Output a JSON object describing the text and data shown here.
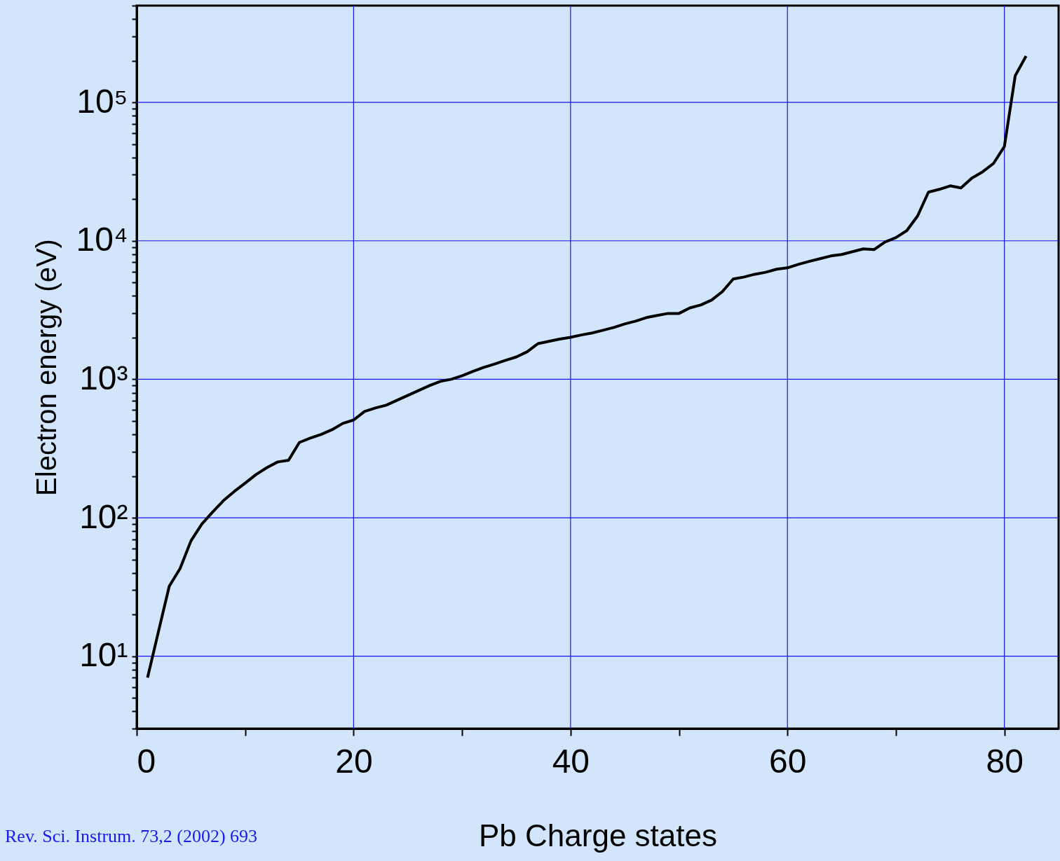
{
  "chart_data": {
    "type": "line",
    "xlabel": "Pb Charge states",
    "ylabel": "Electron energy (eV)",
    "annotations": [
      "Rev. Sci. Instrum. 73,2 (2002) 693"
    ],
    "log": "y",
    "grid": true,
    "line_style": "solid",
    "marker": "none",
    "xlim": [
      0,
      85
    ],
    "ylim": [
      3,
      500000
    ],
    "xticks": [
      0,
      {
        "value": 10,
        "label": null
      },
      20,
      {
        "value": 30,
        "label": null
      },
      40,
      {
        "value": 50,
        "label": null
      },
      60,
      {
        "value": 70,
        "label": null
      },
      80
    ],
    "yticks": [
      {
        "value": 3,
        "label": null
      },
      {
        "value": 4,
        "label": null
      },
      {
        "value": 5,
        "label": null
      },
      {
        "value": 6,
        "label": null
      },
      {
        "value": 7,
        "label": null
      },
      {
        "value": 8,
        "label": null
      },
      {
        "value": 9,
        "label": null
      },
      {
        "value": 10,
        "label": "10¹"
      },
      {
        "value": 20,
        "label": null
      },
      {
        "value": 30,
        "label": null
      },
      {
        "value": 40,
        "label": null
      },
      {
        "value": 50,
        "label": null
      },
      {
        "value": 60,
        "label": null
      },
      {
        "value": 70,
        "label": null
      },
      {
        "value": 80,
        "label": null
      },
      {
        "value": 90,
        "label": null
      },
      {
        "value": 100,
        "label": "10²"
      },
      {
        "value": 200,
        "label": null
      },
      {
        "value": 300,
        "label": null
      },
      {
        "value": 400,
        "label": null
      },
      {
        "value": 500,
        "label": null
      },
      {
        "value": 600,
        "label": null
      },
      {
        "value": 700,
        "label": null
      },
      {
        "value": 800,
        "label": null
      },
      {
        "value": 900,
        "label": null
      },
      {
        "value": 1000,
        "label": "10³"
      },
      {
        "value": 2000,
        "label": null
      },
      {
        "value": 3000,
        "label": null
      },
      {
        "value": 4000,
        "label": null
      },
      {
        "value": 5000,
        "label": null
      },
      {
        "value": 6000,
        "label": null
      },
      {
        "value": 7000,
        "label": null
      },
      {
        "value": 8000,
        "label": null
      },
      {
        "value": 9000,
        "label": null
      },
      {
        "value": 10000,
        "label": "10⁴"
      },
      {
        "value": 20000,
        "label": null
      },
      {
        "value": 30000,
        "label": null
      },
      {
        "value": 40000,
        "label": null
      },
      {
        "value": 50000,
        "label": null
      },
      {
        "value": 60000,
        "label": null
      },
      {
        "value": 70000,
        "label": null
      },
      {
        "value": 80000,
        "label": null
      },
      {
        "value": 90000,
        "label": null
      },
      {
        "value": 100000,
        "label": "10⁵"
      },
      {
        "value": 200000,
        "label": null
      },
      {
        "value": 300000,
        "label": null
      },
      {
        "value": 400000,
        "label": null
      },
      {
        "value": 500000,
        "label": null
      }
    ],
    "x": [
      1,
      2,
      3,
      4,
      5,
      6,
      7,
      8,
      9,
      10,
      11,
      12,
      13,
      14,
      15,
      16,
      17,
      18,
      19,
      20,
      21,
      22,
      23,
      24,
      25,
      26,
      27,
      28,
      29,
      30,
      31,
      32,
      33,
      34,
      35,
      36,
      37,
      38,
      39,
      40,
      41,
      42,
      43,
      44,
      45,
      46,
      47,
      48,
      49,
      50,
      51,
      52,
      53,
      54,
      55,
      56,
      57,
      58,
      59,
      60,
      61,
      62,
      63,
      64,
      65,
      66,
      67,
      68,
      69,
      70,
      71,
      72,
      73,
      74,
      75,
      76,
      77,
      78,
      79,
      80,
      81,
      82
    ],
    "series": [
      {
        "color": "#000000",
        "values": [
          7,
          15,
          32,
          43,
          68,
          90,
          110,
          133,
          155,
          178,
          205,
          230,
          253,
          260,
          350,
          376,
          400,
          432,
          480,
          508,
          585,
          620,
          650,
          705,
          765,
          830,
          900,
          966,
          1000,
          1060,
          1140,
          1220,
          1290,
          1370,
          1450,
          1580,
          1810,
          1880,
          1950,
          2010,
          2090,
          2160,
          2260,
          2370,
          2510,
          2630,
          2790,
          2890,
          2990,
          2990,
          3280,
          3440,
          3730,
          4300,
          5300,
          5480,
          5740,
          5930,
          6240,
          6380,
          6760,
          7100,
          7430,
          7780,
          7970,
          8350,
          8750,
          8650,
          9820,
          10550,
          11840,
          15130,
          22490,
          23540,
          24950,
          24100,
          28400,
          31550,
          36250,
          48000,
          155700,
          216000
        ]
      }
    ]
  }
}
